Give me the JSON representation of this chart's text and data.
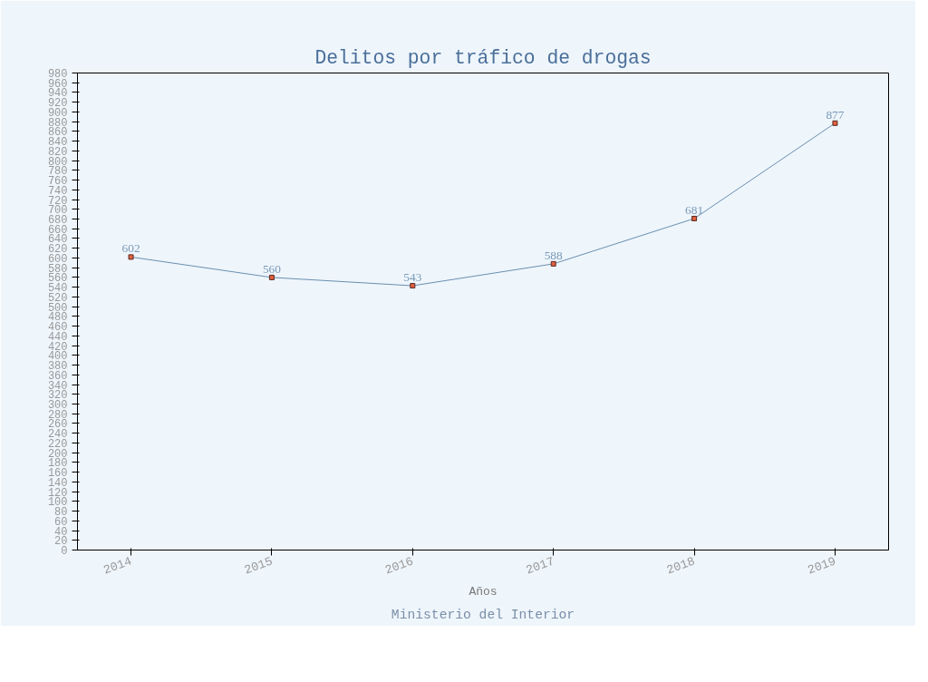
{
  "chart_data": {
    "type": "line",
    "title": "Delitos por tráfico de drogas",
    "xlabel": "Años",
    "annotations": [
      "Ministerio del Interior"
    ],
    "categories": [
      "2014",
      "2015",
      "2016",
      "2017",
      "2018",
      "2019"
    ],
    "series": [
      {
        "color": "#6a8fb0",
        "values": [
          602,
          560,
          543,
          588,
          681,
          877
        ]
      }
    ],
    "marker": "square",
    "data_labels": true,
    "ylim": [
      0,
      980
    ],
    "yticks": [
      0,
      20,
      40,
      60,
      80,
      100,
      120,
      140,
      160,
      180,
      200,
      220,
      240,
      260,
      280,
      300,
      320,
      340,
      360,
      380,
      400,
      420,
      440,
      460,
      480,
      500,
      520,
      540,
      560,
      580,
      600,
      620,
      640,
      660,
      680,
      700,
      720,
      740,
      760,
      780,
      800,
      820,
      840,
      860,
      880,
      900,
      920,
      940,
      960,
      980
    ]
  }
}
